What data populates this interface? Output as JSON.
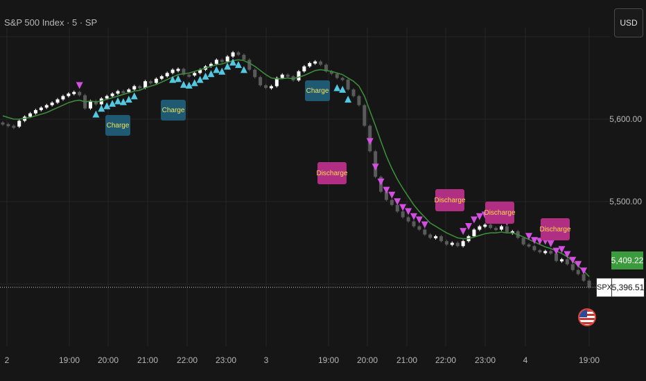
{
  "header": {
    "title": "S&P 500 Index · 5 · SP",
    "currency_button": "USD"
  },
  "price_axis": {
    "ticks": [
      {
        "value": 5600,
        "label": "5,600.00"
      },
      {
        "value": 5500,
        "label": "5,500.00"
      }
    ],
    "ma_value_label": "5,409.22",
    "last_price_label": "5,396.51",
    "symbol_label": "SPX"
  },
  "time_axis": {
    "ticks": [
      "2",
      "19:00",
      "20:00",
      "21:00",
      "22:00",
      "23:00",
      "3",
      "19:00",
      "20:00",
      "21:00",
      "22:00",
      "23:00",
      "4",
      "19:00"
    ]
  },
  "colors": {
    "background": "#161616",
    "grid": "#262626",
    "candle_up": "#ffffff",
    "candle_down": "#5a5a5a",
    "ma_line": "#3c8c3c",
    "charge_marker": "#54c8e0",
    "discharge_marker": "#d24fe0",
    "charge_tag_bg": "#1f5a72",
    "discharge_tag_bg": "#b02f83"
  },
  "chart_data": {
    "type": "line",
    "title": "S&P 500 Index · 5 · SP",
    "ylim": [
      5375,
      5680
    ],
    "x_ticks": [
      "2",
      "19:00",
      "20:00",
      "21:00",
      "22:00",
      "23:00",
      "3",
      "19:00",
      "20:00",
      "21:00",
      "22:00",
      "23:00",
      "4",
      "19:00"
    ],
    "series": [
      {
        "values": [
          5594,
          5592,
          5591,
          5598,
          5603,
          5607,
          5611,
          5614,
          5617,
          5620,
          5624,
          5628,
          5631,
          5633,
          5629,
          5613,
          5622,
          5618,
          5625,
          5628,
          5631,
          5634,
          5633,
          5636,
          5640,
          5638,
          5646,
          5644,
          5649,
          5652,
          5656,
          5660,
          5661,
          5654,
          5653,
          5656,
          5660,
          5664,
          5667,
          5672,
          5670,
          5676,
          5681,
          5678,
          5672,
          5660,
          5651,
          5641,
          5638,
          5640,
          5650,
          5654,
          5652,
          5647,
          5658,
          5664,
          5668,
          5670,
          5666,
          5658,
          5655,
          5650,
          5648,
          5636,
          5628,
          5617,
          5592,
          5561,
          5530,
          5512,
          5502,
          5496,
          5488,
          5481,
          5476,
          5470,
          5466,
          5460,
          5456,
          5458,
          5452,
          5448,
          5450,
          5446,
          5452,
          5458,
          5466,
          5470,
          5472,
          5468,
          5466,
          5470,
          5463,
          5464,
          5456,
          5448,
          5446,
          5441,
          5440,
          5440,
          5437,
          5428,
          5430,
          5424,
          5417,
          5412,
          5404,
          5396
        ],
        "ma": [
          5604,
          5602,
          5600,
          5600,
          5601,
          5602,
          5604,
          5606,
          5608,
          5611,
          5614,
          5617,
          5620,
          5622,
          5623,
          5621,
          5622,
          5621,
          5622,
          5624,
          5626,
          5628,
          5630,
          5632,
          5634,
          5635,
          5638,
          5640,
          5642,
          5645,
          5648,
          5651,
          5654,
          5655,
          5656,
          5658,
          5660,
          5662,
          5664,
          5666,
          5667,
          5669,
          5671,
          5672,
          5671,
          5668,
          5664,
          5659,
          5654,
          5650,
          5649,
          5649,
          5650,
          5649,
          5651,
          5653,
          5656,
          5659,
          5660,
          5659,
          5658,
          5656,
          5654,
          5650,
          5646,
          5640,
          5628,
          5610,
          5592,
          5573,
          5555,
          5540,
          5527,
          5516,
          5506,
          5496,
          5488,
          5481,
          5474,
          5470,
          5466,
          5462,
          5459,
          5456,
          5455,
          5455,
          5457,
          5459,
          5461,
          5462,
          5462,
          5463,
          5462,
          5462,
          5460,
          5457,
          5454,
          5451,
          5448,
          5445,
          5443,
          5440,
          5437,
          5433,
          5428,
          5422,
          5416,
          5409
        ]
      }
    ],
    "annotations": [
      {
        "label": "Charge",
        "type": "charge"
      },
      {
        "label": "Charge",
        "type": "charge"
      },
      {
        "label": "Charge",
        "type": "charge"
      },
      {
        "label": "Discharge",
        "type": "discharge"
      },
      {
        "label": "Discharge",
        "type": "discharge"
      },
      {
        "label": "Discharge",
        "type": "discharge"
      },
      {
        "label": "Discharge",
        "type": "discharge"
      }
    ]
  }
}
